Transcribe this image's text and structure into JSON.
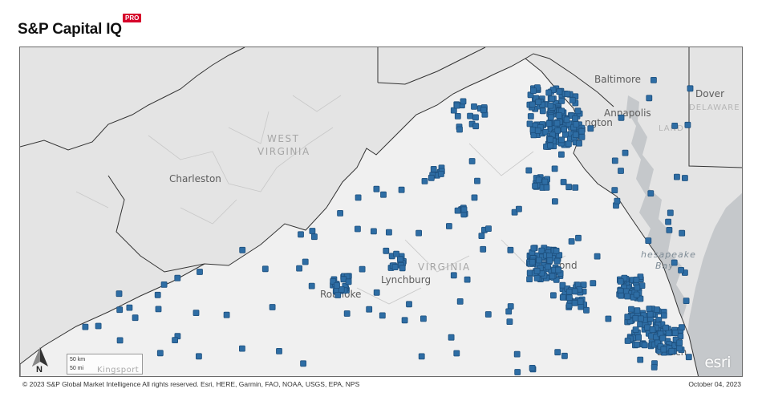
{
  "header": {
    "brand": "S&P Capital IQ",
    "badge": "PRO"
  },
  "map": {
    "labels": {
      "baltimore": "Baltimore",
      "dover": "Dover",
      "delaware": "DELAWARE",
      "annapolis": "Annapolis",
      "washington": "ngton",
      "land": "LAND",
      "west_virginia_1": "WEST",
      "west_virginia_2": "VIRGINIA",
      "charleston": "Charleston",
      "virginia": "VIRGINIA",
      "richmond": "ond",
      "lynchburg": "Lynchburg",
      "roanoke": "Roanoke",
      "chesapeake_1": "hesapeake",
      "chesapeake_2": "Bay",
      "virginia_beach_1": "ia",
      "virginia_beach_2": "Beach",
      "kingsport": "Kingsport"
    },
    "scale_km": "50 km",
    "scale_mi": "50 mi",
    "north": "N",
    "esri": "esri",
    "marker_color": "#2e6da4",
    "marker_edge": "#1d4f7d"
  },
  "footer": {
    "copyright": "© 2023 S&P Global Market Intelligence All rights reserved. Esri, HERE, Garmin, FAO, NOAA, USGS, EPA, NPS",
    "date": "October 04, 2023"
  }
}
